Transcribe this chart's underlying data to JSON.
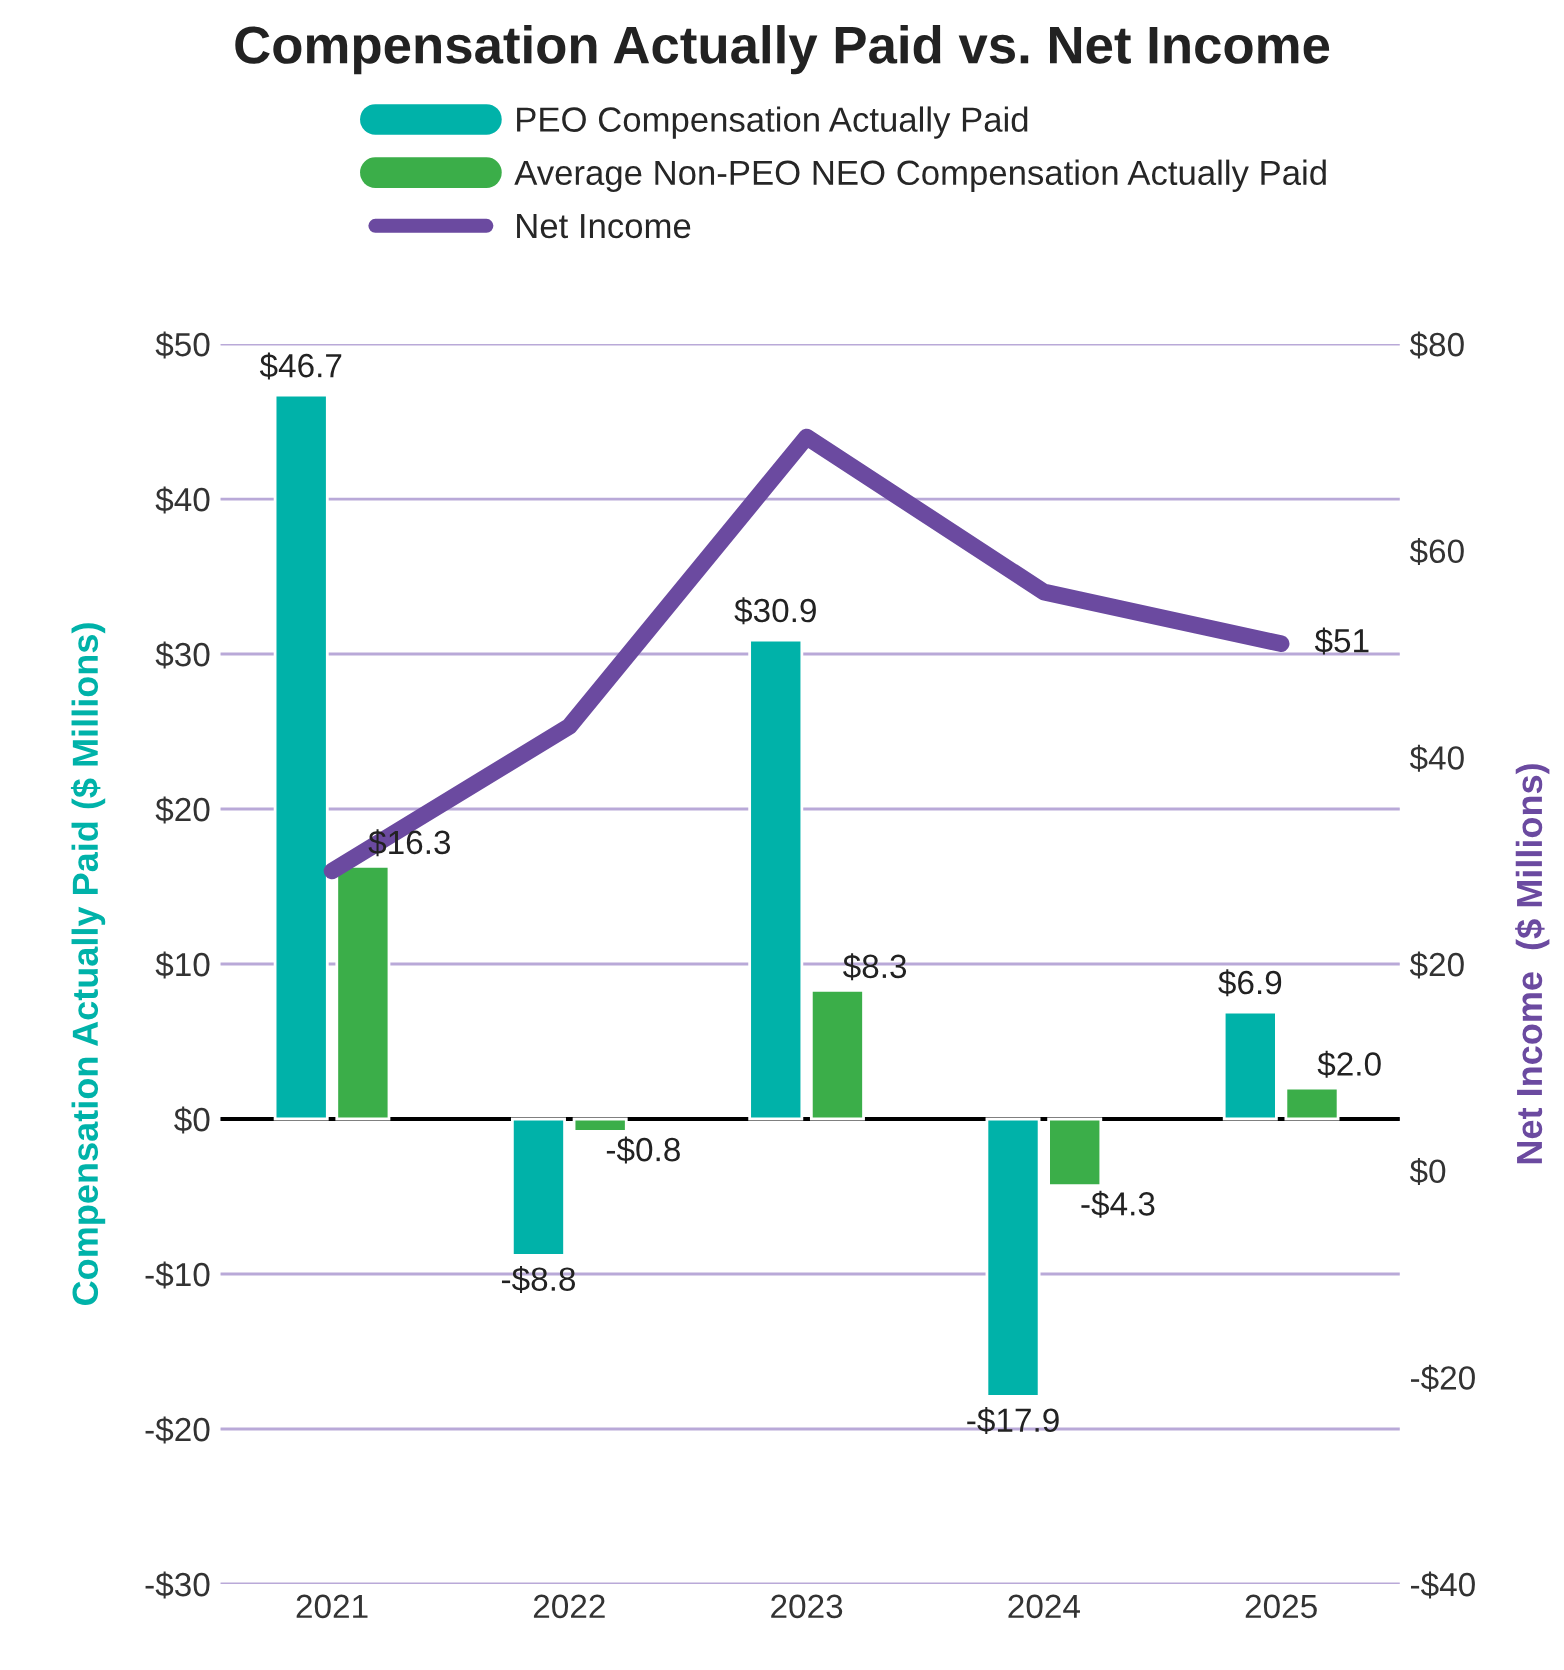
{
  "chart_data": {
    "type": "bar",
    "title": "Compensation Actually Paid vs. Net Income",
    "ylabel": "Compensation Actually Paid ($ Millions)",
    "y2label": "Net Income  ($ Millions)",
    "categories": [
      "2021",
      "2022",
      "2023",
      "2024",
      "2025"
    ],
    "series": [
      {
        "name": "PEO Compensation Actually Paid",
        "color": "#00b2a9",
        "values": [
          46.7,
          -8.8,
          30.9,
          -17.9,
          6.9
        ],
        "value_labels": [
          "$46.7",
          "-$8.8",
          "$30.9",
          "-$17.9",
          "$6.9"
        ]
      },
      {
        "name": "Average Non-PEO NEO Compensation Actually Paid",
        "color": "#3bae49",
        "values": [
          16.3,
          -0.8,
          8.3,
          -4.3,
          2.0
        ],
        "value_labels": [
          "$16.3",
          "-$0.8",
          "$8.3",
          "-$4.3",
          "$2.0"
        ]
      },
      {
        "name": "Net Income",
        "type": "line",
        "axis": "y2",
        "color": "#6b4aa0",
        "values": [
          29,
          43,
          71,
          56,
          51
        ],
        "value_labels": [
          null,
          null,
          null,
          null,
          "$51"
        ]
      }
    ],
    "ylim": [
      -30,
      50
    ],
    "yticks": [
      {
        "value": -30,
        "label": "-$30"
      },
      {
        "value": -20,
        "label": "-$20"
      },
      {
        "value": -10,
        "label": "-$10"
      },
      {
        "value": 0,
        "label": "$0"
      },
      {
        "value": 10,
        "label": "$10"
      },
      {
        "value": 20,
        "label": "$20"
      },
      {
        "value": 30,
        "label": "$30"
      },
      {
        "value": 40,
        "label": "$40"
      },
      {
        "value": 50,
        "label": "$50"
      }
    ],
    "y2lim": [
      -40,
      80
    ],
    "y2ticks": [
      {
        "value": -40,
        "label": "-$40"
      },
      {
        "value": -20,
        "label": "-$20"
      },
      {
        "value": 0,
        "label": "$0"
      },
      {
        "value": 20,
        "label": "$20"
      },
      {
        "value": 40,
        "label": "$40"
      },
      {
        "value": 60,
        "label": "$60"
      },
      {
        "value": 80,
        "label": "$80"
      }
    ],
    "ref_lines": [
      {
        "axis": "y",
        "value": 0,
        "color": "#000000"
      }
    ],
    "grid": "y",
    "legend": "top",
    "marker": "none",
    "line_style": "solid"
  }
}
